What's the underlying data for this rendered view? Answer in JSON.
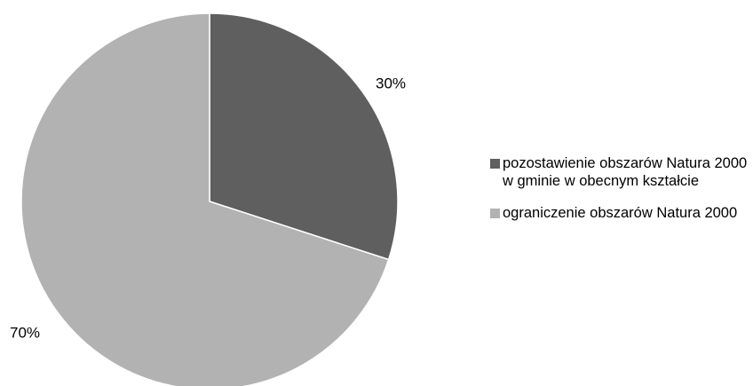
{
  "chart_data": {
    "type": "pie",
    "title": "",
    "categories": [
      "pozostawienie obszarów Natura 2000 w gminie w obecnym kształcie",
      "ograniczenie obszarów Natura 2000"
    ],
    "values": [
      30,
      70
    ],
    "labels": [
      "30%",
      "70%"
    ],
    "colors": [
      "#5f5f5f",
      "#b2b2b2"
    ],
    "start_angle_deg": 0,
    "direction": "clockwise",
    "legend_placement": "right"
  },
  "legend": {
    "items": [
      {
        "label": "pozostawienie obszarów Natura 2000 w gminie w obecnym kształcie",
        "color": "#5f5f5f"
      },
      {
        "label": "ograniczenie obszarów Natura 2000",
        "color": "#b2b2b2"
      }
    ]
  }
}
